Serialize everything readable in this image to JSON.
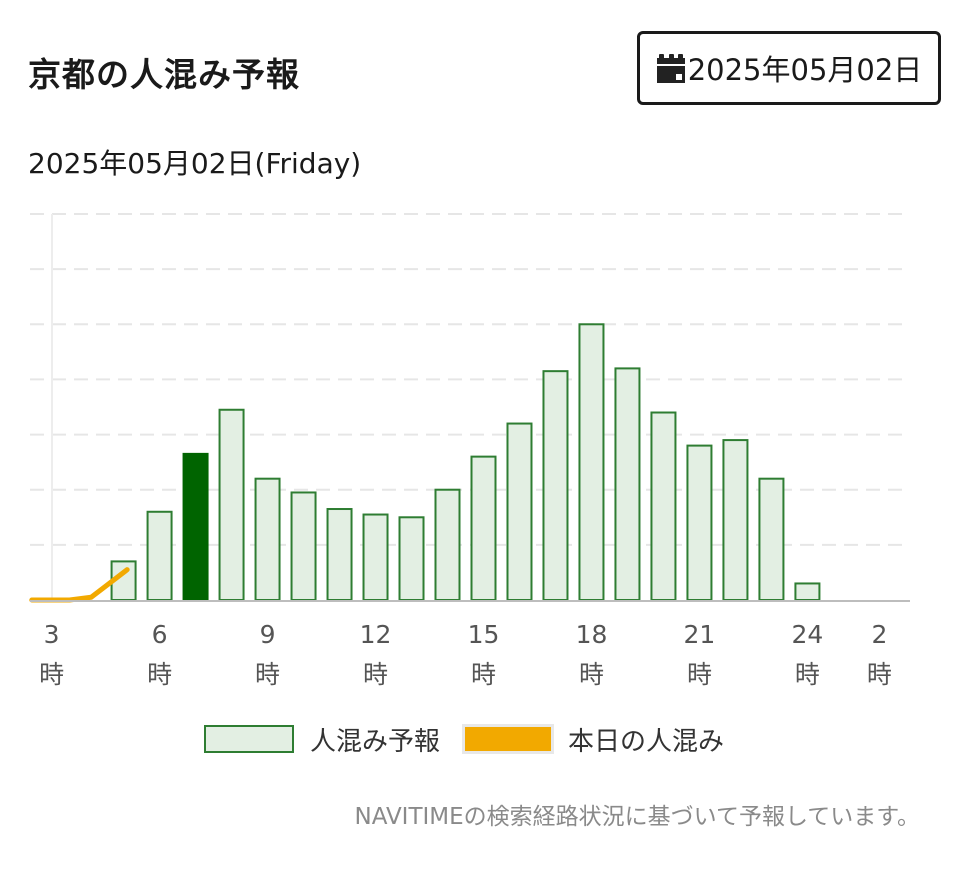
{
  "header": {
    "title": "京都の人混み予報",
    "date_button_label": "2025年05月02日",
    "date_button_icon": "calendar-icon"
  },
  "date_line": "2025年05月02日(Friday)",
  "colors": {
    "forecast_fill": "#e3efe3",
    "forecast_stroke": "#2e7d32",
    "current_hour_fill": "#006400",
    "today_line": "#f2a900",
    "grid": "#e6e6e6",
    "axis": "#bdbdbd"
  },
  "chart_data": {
    "type": "bar",
    "x_ticks": [
      {
        "hour": 3,
        "label": "3",
        "unit": "時"
      },
      {
        "hour": 6,
        "label": "6",
        "unit": "時"
      },
      {
        "hour": 9,
        "label": "9",
        "unit": "時"
      },
      {
        "hour": 12,
        "label": "12",
        "unit": "時"
      },
      {
        "hour": 15,
        "label": "15",
        "unit": "時"
      },
      {
        "hour": 18,
        "label": "18",
        "unit": "時"
      },
      {
        "hour": 21,
        "label": "21",
        "unit": "時"
      },
      {
        "hour": 24,
        "label": "24",
        "unit": "時"
      },
      {
        "hour": 26,
        "label": "2",
        "unit": "時"
      }
    ],
    "x_range": [
      2.4,
      26.85
    ],
    "ylim": [
      0,
      7
    ],
    "grid": true,
    "legend_position": "bottom",
    "series": [
      {
        "name": "人混み予報",
        "kind": "bar",
        "hours": [
          5,
          6,
          7,
          8,
          9,
          10,
          11,
          12,
          13,
          14,
          15,
          16,
          17,
          18,
          19,
          20,
          21,
          22,
          23,
          24
        ],
        "values": [
          0.7,
          1.6,
          2.65,
          3.45,
          2.2,
          1.95,
          1.65,
          1.55,
          1.5,
          2.0,
          2.6,
          3.2,
          4.15,
          5.0,
          4.2,
          3.4,
          2.8,
          2.9,
          2.2,
          0.3
        ],
        "highlight_hour": 7
      },
      {
        "name": "本日の人混み",
        "kind": "line",
        "hours": [
          2.45,
          3.5,
          4.1,
          4.5,
          5.1
        ],
        "values": [
          0.0,
          0.0,
          0.05,
          0.25,
          0.55
        ]
      }
    ]
  },
  "legend": {
    "forecast_label": "人混み予報",
    "today_label": "本日の人混み"
  },
  "footnote": "NAVITIMEの検索経路状況に基づいて予報しています。"
}
